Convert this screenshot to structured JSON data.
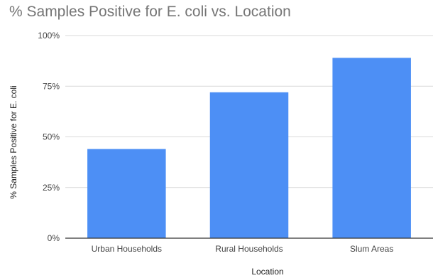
{
  "chart_data": {
    "type": "bar",
    "title": "% Samples Positive for E. coli vs. Location",
    "xlabel": "Location",
    "ylabel": "% Samples Positive for E. coli",
    "categories": [
      "Urban Households",
      "Rural Households",
      "Slum Areas"
    ],
    "values": [
      44,
      72,
      89
    ],
    "ylim": [
      0,
      100
    ],
    "yticks": [
      0,
      25,
      50,
      75,
      100
    ],
    "ytick_labels": [
      "0%",
      "25%",
      "50%",
      "75%",
      "100%"
    ],
    "grid": true,
    "legend": "none",
    "bar_color": "#4d8ff5",
    "grid_color": "#d9d9d9",
    "axis_color": "#333333"
  }
}
